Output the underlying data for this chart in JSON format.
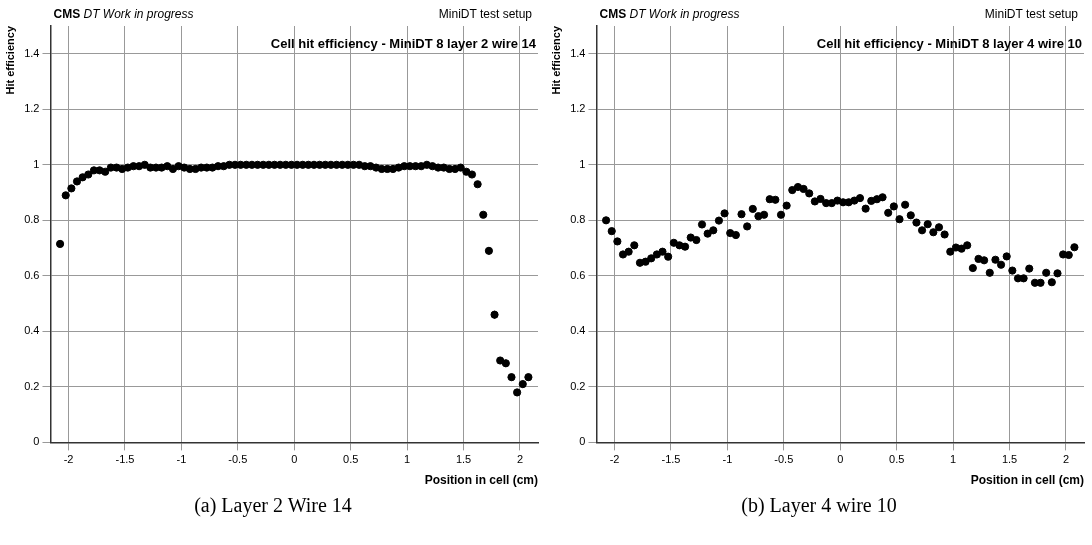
{
  "chart_data": [
    {
      "type": "scatter",
      "title": "Cell hit efficiency - MiniDT 8 layer 2 wire 14",
      "xlabel": "Position in cell (cm)",
      "ylabel": "Hit efficiency",
      "annotations": [
        "CMS",
        "DT Work in progress",
        "MiniDT test setup",
        "(a) Layer 2 Wire 14"
      ],
      "x": [
        -2.075,
        -2.025,
        -1.975,
        -1.925,
        -1.875,
        -1.825,
        -1.775,
        -1.725,
        -1.675,
        -1.625,
        -1.575,
        -1.525,
        -1.475,
        -1.425,
        -1.375,
        -1.325,
        -1.275,
        -1.225,
        -1.175,
        -1.125,
        -1.075,
        -1.025,
        -0.975,
        -0.925,
        -0.875,
        -0.825,
        -0.775,
        -0.725,
        -0.675,
        -0.625,
        -0.575,
        -0.525,
        -0.475,
        -0.425,
        -0.375,
        -0.325,
        -0.275,
        -0.225,
        -0.175,
        -0.125,
        -0.075,
        -0.025,
        0.025,
        0.075,
        0.125,
        0.175,
        0.225,
        0.275,
        0.325,
        0.375,
        0.425,
        0.475,
        0.525,
        0.575,
        0.625,
        0.675,
        0.725,
        0.775,
        0.825,
        0.875,
        0.925,
        0.975,
        1.025,
        1.075,
        1.125,
        1.175,
        1.225,
        1.275,
        1.325,
        1.375,
        1.425,
        1.475,
        1.525,
        1.575,
        1.625,
        1.675,
        1.725,
        1.775,
        1.825,
        1.875,
        1.925,
        1.975,
        2.025,
        2.075
      ],
      "series": [
        {
          "color": "#000000",
          "values": [
            0.715,
            0.89,
            0.915,
            0.94,
            0.955,
            0.965,
            0.98,
            0.98,
            0.975,
            0.99,
            0.99,
            0.985,
            0.99,
            0.995,
            0.995,
            1.0,
            0.99,
            0.99,
            0.99,
            0.995,
            0.985,
            0.995,
            0.99,
            0.985,
            0.985,
            0.99,
            0.99,
            0.99,
            0.995,
            0.995,
            1.0,
            1.0,
            1.0,
            1.0,
            1.0,
            1.0,
            1.0,
            1.0,
            1.0,
            1.0,
            1.0,
            1.0,
            1.0,
            1.0,
            1.0,
            1.0,
            1.0,
            1.0,
            1.0,
            1.0,
            1.0,
            1.0,
            1.0,
            1.0,
            0.995,
            0.995,
            0.99,
            0.985,
            0.985,
            0.985,
            0.99,
            0.995,
            0.995,
            0.995,
            0.995,
            1.0,
            0.995,
            0.99,
            0.99,
            0.985,
            0.985,
            0.99,
            0.975,
            0.965,
            0.93,
            0.82,
            0.69,
            0.46,
            0.295,
            0.285,
            0.235,
            0.18,
            0.21,
            0.235
          ],
          "errors": [
            0.012,
            0.006,
            0.005,
            0.005,
            0.004,
            0.004,
            0.003,
            0.003,
            0.003,
            0.003,
            0.003,
            0.003,
            0.003,
            0.003,
            0.003,
            0.003,
            0.003,
            0.003,
            0.003,
            0.003,
            0.003,
            0.003,
            0.003,
            0.003,
            0.003,
            0.003,
            0.003,
            0.003,
            0.003,
            0.003,
            0.003,
            0.003,
            0.003,
            0.003,
            0.003,
            0.003,
            0.003,
            0.003,
            0.003,
            0.003,
            0.003,
            0.003,
            0.003,
            0.003,
            0.003,
            0.003,
            0.003,
            0.003,
            0.003,
            0.003,
            0.003,
            0.003,
            0.003,
            0.003,
            0.003,
            0.003,
            0.003,
            0.003,
            0.003,
            0.003,
            0.003,
            0.003,
            0.003,
            0.003,
            0.003,
            0.003,
            0.003,
            0.003,
            0.003,
            0.003,
            0.003,
            0.003,
            0.004,
            0.005,
            0.007,
            0.01,
            0.012,
            0.014,
            0.013,
            0.013,
            0.012,
            0.011,
            0.012,
            0.012
          ]
        }
      ],
      "xlim": [
        -2.16,
        2.16
      ],
      "xticks": [
        -2,
        -1.5,
        -1,
        -0.5,
        0,
        0.5,
        1,
        1.5,
        2
      ],
      "ylim": [
        0,
        1.5
      ],
      "yticks": [
        0,
        0.2,
        0.4,
        0.6,
        0.8,
        1,
        1.2,
        1.4
      ],
      "grid": true,
      "legend": false,
      "marker": "circle"
    },
    {
      "type": "scatter",
      "title": "Cell hit efficiency - MiniDT 8 layer 4 wire 10",
      "xlabel": "Position in cell (cm)",
      "ylabel": "Hit efficiency",
      "annotations": [
        "CMS",
        "DT Work in progress",
        "MiniDT test setup",
        "(b) Layer 4 wire 10"
      ],
      "x": [
        -2.075,
        -2.025,
        -1.975,
        -1.925,
        -1.875,
        -1.825,
        -1.775,
        -1.725,
        -1.675,
        -1.625,
        -1.575,
        -1.525,
        -1.475,
        -1.425,
        -1.375,
        -1.325,
        -1.275,
        -1.225,
        -1.175,
        -1.125,
        -1.075,
        -1.025,
        -0.975,
        -0.925,
        -0.875,
        -0.825,
        -0.775,
        -0.725,
        -0.675,
        -0.625,
        -0.575,
        -0.525,
        -0.475,
        -0.425,
        -0.375,
        -0.325,
        -0.275,
        -0.225,
        -0.175,
        -0.125,
        -0.075,
        -0.025,
        0.025,
        0.075,
        0.125,
        0.175,
        0.225,
        0.275,
        0.325,
        0.375,
        0.425,
        0.475,
        0.525,
        0.575,
        0.625,
        0.675,
        0.725,
        0.775,
        0.825,
        0.875,
        0.925,
        0.975,
        1.025,
        1.075,
        1.125,
        1.175,
        1.225,
        1.275,
        1.325,
        1.375,
        1.425,
        1.475,
        1.525,
        1.575,
        1.625,
        1.675,
        1.725,
        1.775,
        1.825,
        1.875,
        1.925,
        1.975,
        2.025,
        2.075
      ],
      "series": [
        {
          "color": "#000000",
          "values": [
            0.8,
            0.761,
            0.724,
            0.677,
            0.687,
            0.71,
            0.647,
            0.651,
            0.663,
            0.677,
            0.687,
            0.669,
            0.719,
            0.71,
            0.705,
            0.738,
            0.729,
            0.785,
            0.752,
            0.764,
            0.799,
            0.825,
            0.754,
            0.747,
            0.822,
            0.778,
            0.841,
            0.815,
            0.82,
            0.876,
            0.874,
            0.82,
            0.853,
            0.909,
            0.92,
            0.913,
            0.897,
            0.868,
            0.877,
            0.862,
            0.862,
            0.871,
            0.865,
            0.865,
            0.871,
            0.88,
            0.842,
            0.87,
            0.876,
            0.883,
            0.827,
            0.85,
            0.804,
            0.856,
            0.818,
            0.792,
            0.764,
            0.786,
            0.757,
            0.775,
            0.749,
            0.687,
            0.702,
            0.698,
            0.71,
            0.628,
            0.661,
            0.656,
            0.611,
            0.658,
            0.64,
            0.67,
            0.619,
            0.591,
            0.591,
            0.626,
            0.575,
            0.575,
            0.611,
            0.577,
            0.609,
            0.677,
            0.675,
            0.703
          ],
          "errors": [
            0.01,
            0.01,
            0.01,
            0.01,
            0.01,
            0.01,
            0.01,
            0.01,
            0.01,
            0.01,
            0.01,
            0.01,
            0.01,
            0.01,
            0.01,
            0.01,
            0.01,
            0.01,
            0.01,
            0.01,
            0.01,
            0.01,
            0.01,
            0.01,
            0.01,
            0.01,
            0.01,
            0.01,
            0.01,
            0.01,
            0.01,
            0.01,
            0.01,
            0.01,
            0.01,
            0.01,
            0.01,
            0.01,
            0.01,
            0.01,
            0.01,
            0.01,
            0.01,
            0.01,
            0.01,
            0.01,
            0.01,
            0.01,
            0.01,
            0.01,
            0.01,
            0.01,
            0.01,
            0.01,
            0.01,
            0.01,
            0.01,
            0.01,
            0.01,
            0.01,
            0.01,
            0.01,
            0.01,
            0.01,
            0.01,
            0.01,
            0.01,
            0.01,
            0.01,
            0.01,
            0.01,
            0.01,
            0.01,
            0.01,
            0.01,
            0.01,
            0.01,
            0.01,
            0.01,
            0.01,
            0.01,
            0.01,
            0.01,
            0.01
          ]
        }
      ],
      "xlim": [
        -2.16,
        2.16
      ],
      "xticks": [
        -2,
        -1.5,
        -1,
        -0.5,
        0,
        0.5,
        1,
        1.5,
        2
      ],
      "ylim": [
        0,
        1.5
      ],
      "yticks": [
        0,
        0.2,
        0.4,
        0.6,
        0.8,
        1,
        1.2,
        1.4
      ],
      "grid": true,
      "legend": false,
      "marker": "circle"
    }
  ]
}
